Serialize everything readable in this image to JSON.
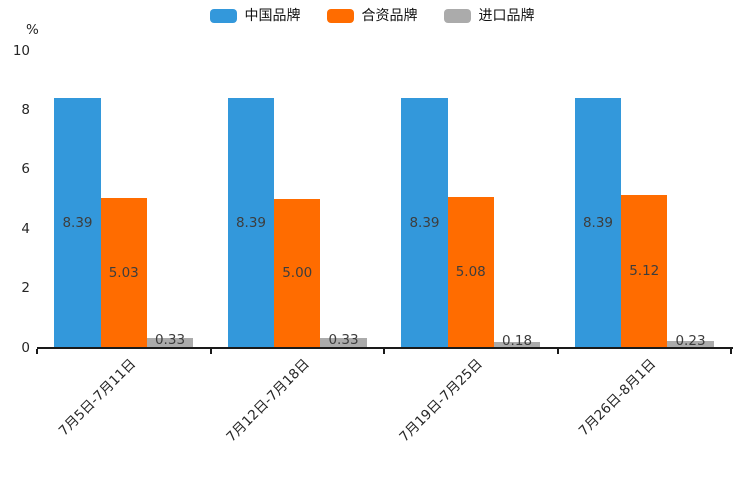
{
  "chart_data": {
    "type": "bar",
    "title": "",
    "categories": [
      "7月5日-7月11日",
      "7月12日-7月18日",
      "7月19日-7月25日",
      "7月26日-8月1日"
    ],
    "series": [
      {
        "name": "中国品牌",
        "color": "#3398DB",
        "values": [
          8.39,
          8.39,
          8.39,
          8.39
        ],
        "labels": [
          "8.39",
          "8.39",
          "8.39",
          "8.39"
        ]
      },
      {
        "name": "合资品牌",
        "color": "#FF6C00",
        "values": [
          5.03,
          5.0,
          5.08,
          5.12
        ],
        "labels": [
          "5.03",
          "5.00",
          "5.08",
          "5.12"
        ]
      },
      {
        "name": "进口品牌",
        "color": "#ABABAB",
        "values": [
          0.33,
          0.33,
          0.18,
          0.23
        ],
        "labels": [
          "0.33",
          "0.33",
          "0.18",
          "0.23"
        ]
      }
    ],
    "xlabel": "",
    "ylabel": "%",
    "ylim": [
      0,
      10
    ],
    "yticks": [
      "0",
      "2",
      "4",
      "6",
      "8",
      "10"
    ],
    "grid": false,
    "legend_position": "top-center",
    "value_labels": true,
    "xtick_rotation_deg": 45
  },
  "colors": {
    "axis": "#1a1a1a",
    "tick_text": "#262626",
    "value_label_text": "#3d3d3d",
    "background": "#ffffff"
  }
}
